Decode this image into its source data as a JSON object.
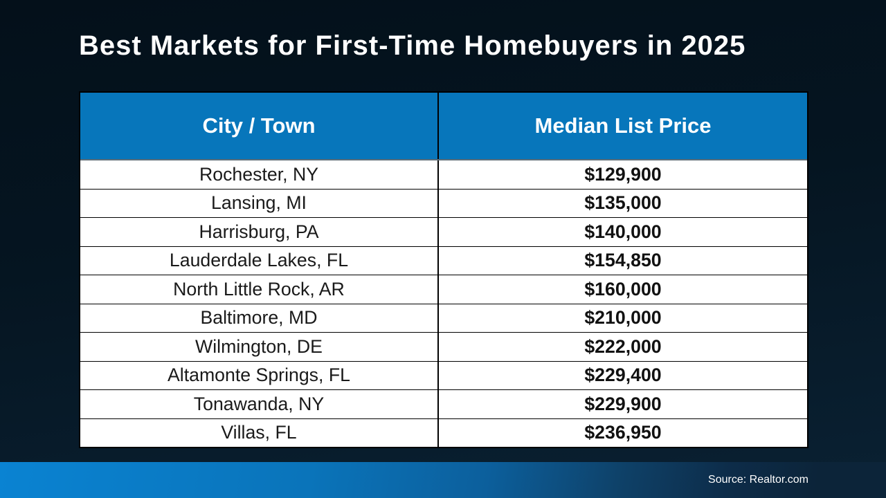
{
  "title": "Best Markets for First-Time Homebuyers in 2025",
  "table": {
    "headers": [
      "City / Town",
      "Median List Price"
    ],
    "rows": [
      {
        "city": "Rochester, NY",
        "price": "$129,900"
      },
      {
        "city": "Lansing, MI",
        "price": "$135,000"
      },
      {
        "city": "Harrisburg, PA",
        "price": "$140,000"
      },
      {
        "city": "Lauderdale Lakes, FL",
        "price": "$154,850"
      },
      {
        "city": "North Little Rock, AR",
        "price": "$160,000"
      },
      {
        "city": "Baltimore, MD",
        "price": "$210,000"
      },
      {
        "city": "Wilmington, DE",
        "price": "$222,000"
      },
      {
        "city": "Altamonte Springs, FL",
        "price": "$229,400"
      },
      {
        "city": "Tonawanda, NY",
        "price": "$229,900"
      },
      {
        "city": "Villas, FL",
        "price": "$236,950"
      }
    ]
  },
  "footer": {
    "source": "Source: Realtor.com"
  },
  "colors": {
    "header_blue": "#0776bb",
    "footer_blue_left": "#0a83d2",
    "footer_navy_right": "#0c2439",
    "background_top": "#04101a",
    "background_bottom": "#0a2133",
    "row_bg": "#ffffff",
    "text_dark": "#1a1a1a",
    "text_white": "#ffffff"
  },
  "chart_data": {
    "type": "table",
    "title": "Best Markets for First-Time Homebuyers in 2025",
    "columns": [
      "City / Town",
      "Median List Price"
    ],
    "categories": [
      "Rochester, NY",
      "Lansing, MI",
      "Harrisburg, PA",
      "Lauderdale Lakes, FL",
      "North Little Rock, AR",
      "Baltimore, MD",
      "Wilmington, DE",
      "Altamonte Springs, FL",
      "Tonawanda, NY",
      "Villas, FL"
    ],
    "values": [
      129900,
      135000,
      140000,
      154850,
      160000,
      210000,
      222000,
      229400,
      229900,
      236950
    ],
    "source": "Source: Realtor.com"
  }
}
